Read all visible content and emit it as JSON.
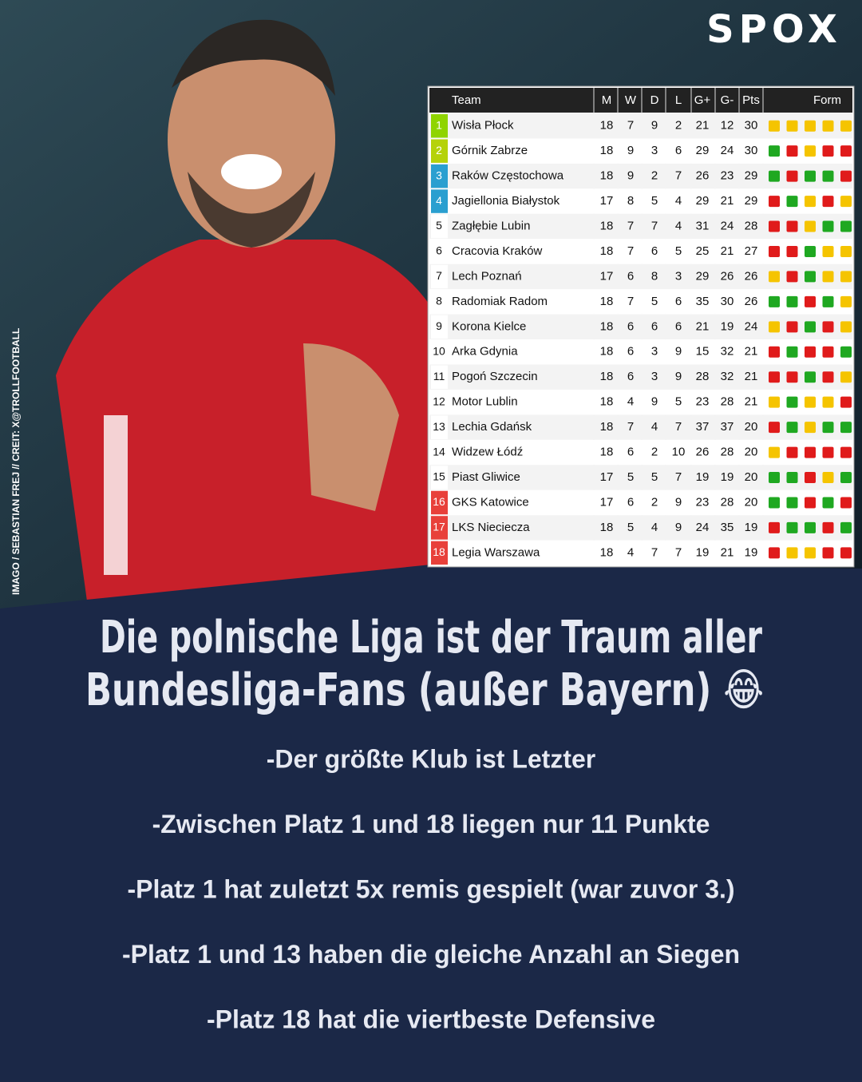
{
  "logo": "SPOX",
  "credit": "IMAGO / SEBASTIAN FREJ // CREIT: X@TROLLFOOTBALL",
  "headline": [
    "Die polnische Liga ist der Traum aller",
    "Bundesliga-Fans (außer Bayern) 😂"
  ],
  "bullets": [
    "-Der größte Klub ist Letzter",
    "-Zwischen Platz 1 und 18 liegen nur 11 Punkte",
    "-Platz 1 hat zuletzt 5x remis gespielt (war zuvor 3.)",
    "-Platz 1 und 13 haben die gleiche Anzahl an Siegen",
    "-Platz 18 hat die viertbeste Defensive"
  ],
  "table": {
    "header": [
      "Team",
      "M",
      "W",
      "D",
      "L",
      "G+",
      "G-",
      "Pts",
      "Form"
    ],
    "rows": [
      {
        "rank": 1,
        "team": "Wisła Płock",
        "stats": [
          18,
          7,
          9,
          2,
          21,
          12,
          30
        ],
        "rank_color": "#8fd400",
        "form": [
          "#f5c400",
          "#f5c400",
          "#f5c400",
          "#f5c400",
          "#f5c400"
        ]
      },
      {
        "rank": 2,
        "team": "Górnik Zabrze",
        "stats": [
          18,
          9,
          3,
          6,
          29,
          24,
          30
        ],
        "rank_color": "#b5d20a",
        "form": [
          "#1fa821",
          "#e01b1b",
          "#f5c400",
          "#e01b1b",
          "#e01b1b"
        ]
      },
      {
        "rank": 3,
        "team": "Raków Częstochowa",
        "stats": [
          18,
          9,
          2,
          7,
          26,
          23,
          29
        ],
        "rank_color": "#2a9fd0",
        "form": [
          "#1fa821",
          "#e01b1b",
          "#1fa821",
          "#1fa821",
          "#e01b1b"
        ]
      },
      {
        "rank": 4,
        "team": "Jagiellonia Białystok",
        "stats": [
          17,
          8,
          5,
          4,
          29,
          21,
          29
        ],
        "rank_color": "#2a9fd0",
        "form": [
          "#e01b1b",
          "#1fa821",
          "#f5c400",
          "#e01b1b",
          "#f5c400"
        ]
      },
      {
        "rank": 5,
        "team": "Zagłębie Lubin",
        "stats": [
          18,
          7,
          7,
          4,
          31,
          24,
          28
        ],
        "rank_color": "#ffffff",
        "form": [
          "#e01b1b",
          "#e01b1b",
          "#f5c400",
          "#1fa821",
          "#1fa821"
        ]
      },
      {
        "rank": 6,
        "team": "Cracovia Kraków",
        "stats": [
          18,
          7,
          6,
          5,
          25,
          21,
          27
        ],
        "rank_color": "#ffffff",
        "form": [
          "#e01b1b",
          "#e01b1b",
          "#1fa821",
          "#f5c400",
          "#f5c400"
        ]
      },
      {
        "rank": 7,
        "team": "Lech Poznań",
        "stats": [
          17,
          6,
          8,
          3,
          29,
          26,
          26
        ],
        "rank_color": "#ffffff",
        "form": [
          "#f5c400",
          "#e01b1b",
          "#1fa821",
          "#f5c400",
          "#f5c400"
        ]
      },
      {
        "rank": 8,
        "team": "Radomiak Radom",
        "stats": [
          18,
          7,
          5,
          6,
          35,
          30,
          26
        ],
        "rank_color": "#ffffff",
        "form": [
          "#1fa821",
          "#1fa821",
          "#e01b1b",
          "#1fa821",
          "#f5c400"
        ]
      },
      {
        "rank": 9,
        "team": "Korona Kielce",
        "stats": [
          18,
          6,
          6,
          6,
          21,
          19,
          24
        ],
        "rank_color": "#ffffff",
        "form": [
          "#f5c400",
          "#e01b1b",
          "#1fa821",
          "#e01b1b",
          "#f5c400"
        ]
      },
      {
        "rank": 10,
        "team": "Arka Gdynia",
        "stats": [
          18,
          6,
          3,
          9,
          15,
          32,
          21
        ],
        "rank_color": "#ffffff",
        "form": [
          "#e01b1b",
          "#1fa821",
          "#e01b1b",
          "#e01b1b",
          "#1fa821"
        ]
      },
      {
        "rank": 11,
        "team": "Pogoń Szczecin",
        "stats": [
          18,
          6,
          3,
          9,
          28,
          32,
          21
        ],
        "rank_color": "#ffffff",
        "form": [
          "#e01b1b",
          "#e01b1b",
          "#1fa821",
          "#e01b1b",
          "#f5c400"
        ]
      },
      {
        "rank": 12,
        "team": "Motor Lublin",
        "stats": [
          18,
          4,
          9,
          5,
          23,
          28,
          21
        ],
        "rank_color": "#ffffff",
        "form": [
          "#f5c400",
          "#1fa821",
          "#f5c400",
          "#f5c400",
          "#e01b1b"
        ]
      },
      {
        "rank": 13,
        "team": "Lechia Gdańsk",
        "stats": [
          18,
          7,
          4,
          7,
          37,
          37,
          20
        ],
        "rank_color": "#ffffff",
        "form": [
          "#e01b1b",
          "#1fa821",
          "#f5c400",
          "#1fa821",
          "#1fa821"
        ]
      },
      {
        "rank": 14,
        "team": "Widzew Łódź",
        "stats": [
          18,
          6,
          2,
          10,
          26,
          28,
          20
        ],
        "rank_color": "#ffffff",
        "form": [
          "#f5c400",
          "#e01b1b",
          "#e01b1b",
          "#e01b1b",
          "#e01b1b"
        ]
      },
      {
        "rank": 15,
        "team": "Piast Gliwice",
        "stats": [
          17,
          5,
          5,
          7,
          19,
          19,
          20
        ],
        "rank_color": "#ffffff",
        "form": [
          "#1fa821",
          "#1fa821",
          "#e01b1b",
          "#f5c400",
          "#1fa821"
        ]
      },
      {
        "rank": 16,
        "team": "GKS Katowice",
        "stats": [
          17,
          6,
          2,
          9,
          23,
          28,
          20
        ],
        "rank_color": "#e8403a",
        "form": [
          "#1fa821",
          "#1fa821",
          "#e01b1b",
          "#1fa821",
          "#e01b1b"
        ]
      },
      {
        "rank": 17,
        "team": "LKS Nieciecza",
        "stats": [
          18,
          5,
          4,
          9,
          24,
          35,
          19
        ],
        "rank_color": "#e8403a",
        "form": [
          "#e01b1b",
          "#1fa821",
          "#1fa821",
          "#e01b1b",
          "#1fa821"
        ]
      },
      {
        "rank": 18,
        "team": "Legia Warszawa",
        "stats": [
          18,
          4,
          7,
          7,
          19,
          21,
          19
        ],
        "rank_color": "#e8403a",
        "form": [
          "#e01b1b",
          "#f5c400",
          "#f5c400",
          "#e01b1b",
          "#e01b1b"
        ]
      }
    ]
  }
}
